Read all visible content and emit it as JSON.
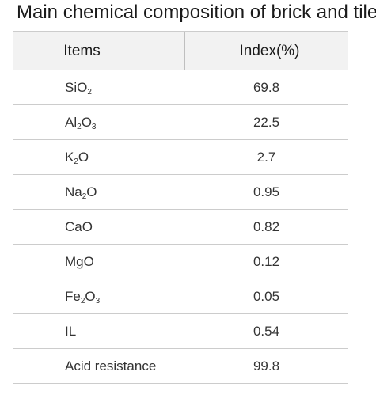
{
  "title": "Main chemical composition of brick and tile",
  "table": {
    "headers": [
      "Items",
      "Index(%)"
    ],
    "rows": [
      {
        "item": [
          {
            "t": "SiO"
          },
          {
            "s": "2"
          }
        ],
        "value": "69.8"
      },
      {
        "item": [
          {
            "t": "Al"
          },
          {
            "s": "2"
          },
          {
            "t": "O"
          },
          {
            "s": "3"
          }
        ],
        "value": "22.5"
      },
      {
        "item": [
          {
            "t": "K"
          },
          {
            "s": "2"
          },
          {
            "t": "O"
          }
        ],
        "value": "2.7"
      },
      {
        "item": [
          {
            "t": "Na"
          },
          {
            "s": "2"
          },
          {
            "t": "O"
          }
        ],
        "value": "0.95"
      },
      {
        "item": [
          {
            "t": "CaO"
          }
        ],
        "value": "0.82"
      },
      {
        "item": [
          {
            "t": "MgO"
          }
        ],
        "value": "0.12"
      },
      {
        "item": [
          {
            "t": "Fe"
          },
          {
            "s": "2"
          },
          {
            "t": "O"
          },
          {
            "s": "3"
          }
        ],
        "value": "0.05"
      },
      {
        "item": [
          {
            "t": "IL"
          }
        ],
        "value": "0.54"
      },
      {
        "item": [
          {
            "t": "Acid resistance"
          }
        ],
        "value": "99.8"
      }
    ]
  }
}
